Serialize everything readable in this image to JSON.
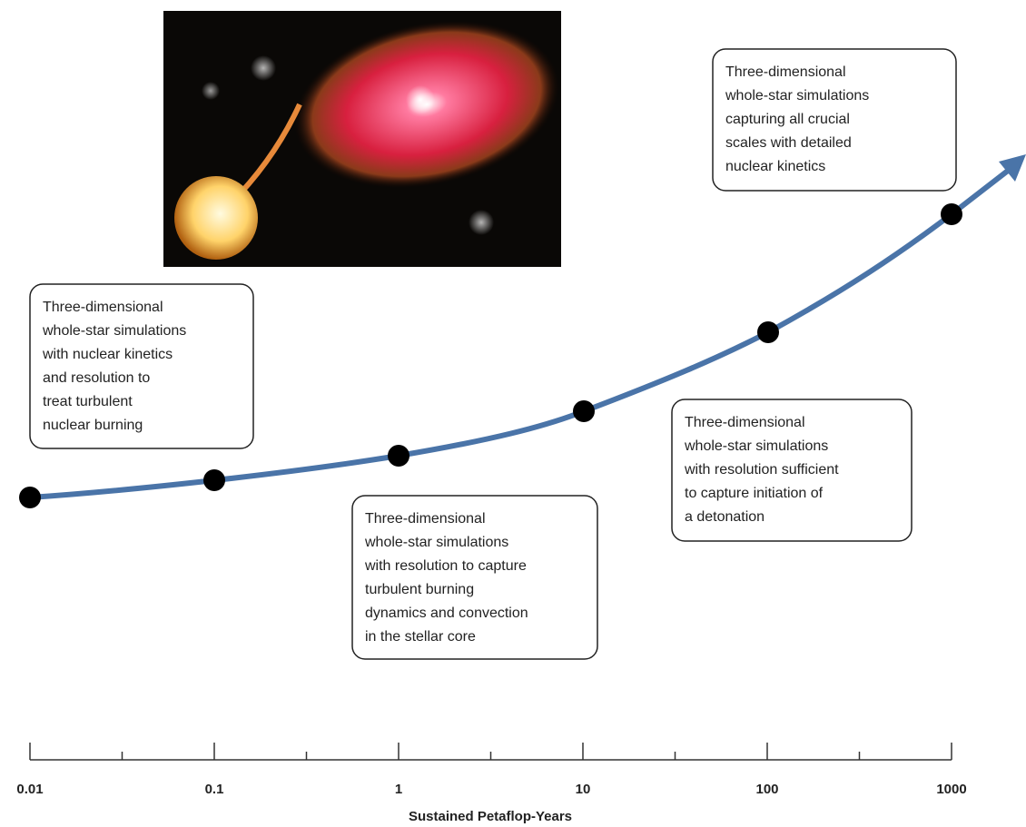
{
  "annotations": [
    {
      "lines": [
        "Three-dimensional",
        "whole-star simulations",
        "with nuclear kinetics",
        "and resolution to",
        "treat turbulent",
        "nuclear burning"
      ]
    },
    {
      "lines": [
        "Three-dimensional",
        "whole-star simulations",
        "with resolution to capture",
        "turbulent burning",
        "dynamics and convection",
        "in the stellar core"
      ]
    },
    {
      "lines": [
        "Three-dimensional",
        "whole-star simulations",
        "with resolution sufficient",
        "to capture initiation of",
        "a detonation"
      ]
    },
    {
      "lines": [
        "Three-dimensional",
        "whole-star simulations",
        "capturing all crucial",
        "scales with detailed",
        "nuclear kinetics"
      ]
    }
  ],
  "x_axis": {
    "tick_labels": [
      "0.01",
      "0.1",
      "1",
      "10",
      "100",
      "1000"
    ],
    "title": "Sustained Petaflop-Years"
  }
}
